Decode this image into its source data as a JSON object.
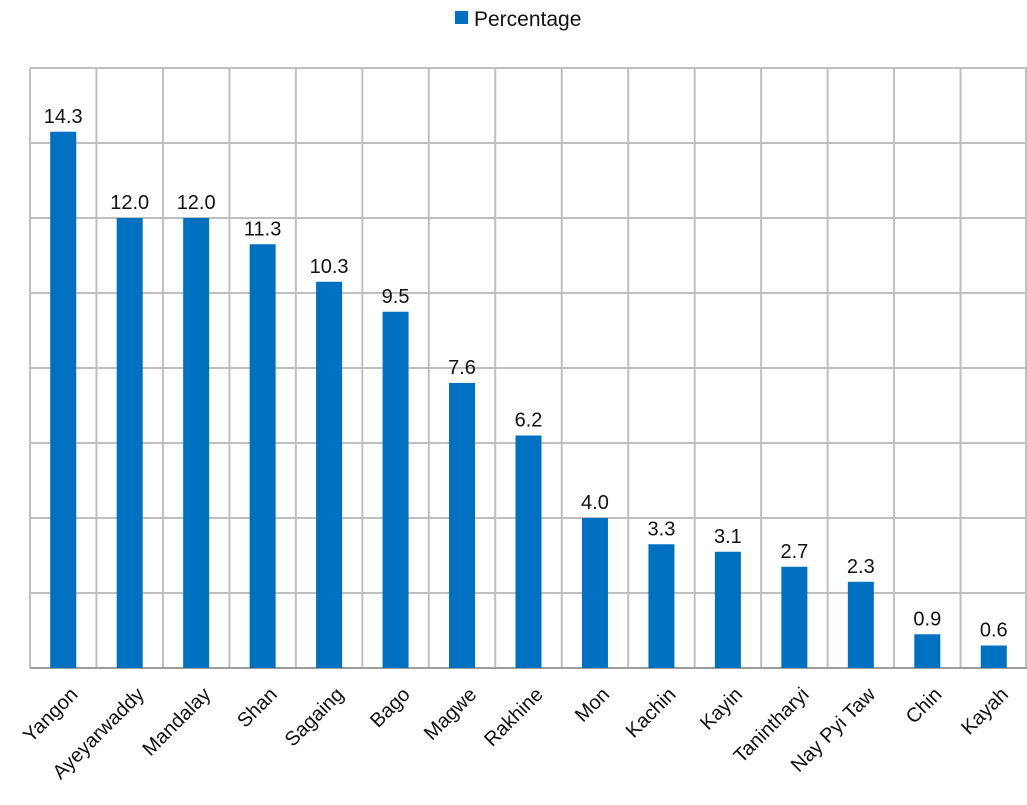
{
  "chart_data": {
    "type": "bar",
    "title": "",
    "xlabel": "",
    "ylabel": "",
    "categories": [
      "Yangon",
      "Ayeyarwaddy",
      "Mandalay",
      "Shan",
      "Sagaing",
      "Bago",
      "Magwe",
      "Rakhine",
      "Mon",
      "Kachin",
      "Kayin",
      "Tanintharyi",
      "Nay Pyi Taw",
      "Chin",
      "Kayah"
    ],
    "series": [
      {
        "name": "Percentage",
        "values": [
          14.3,
          12.0,
          12.0,
          11.3,
          10.3,
          9.5,
          7.6,
          6.2,
          4.0,
          3.3,
          3.1,
          2.7,
          2.3,
          0.9,
          0.6
        ]
      }
    ],
    "data_labels": [
      "14.3",
      "12.0",
      "12.0",
      "11.3",
      "10.3",
      "9.5",
      "7.6",
      "6.2",
      "4.0",
      "3.3",
      "3.1",
      "2.7",
      "2.3",
      "0.9",
      "0.6"
    ],
    "ylim": [
      0,
      16
    ],
    "y_gridlines": [
      2,
      4,
      6,
      8,
      10,
      12,
      14
    ],
    "grid": true,
    "legend_position": "top-center",
    "colors": {
      "bar": "#0070C0",
      "grid": "#BFBFBF",
      "axis": "#9C9C9C"
    }
  }
}
